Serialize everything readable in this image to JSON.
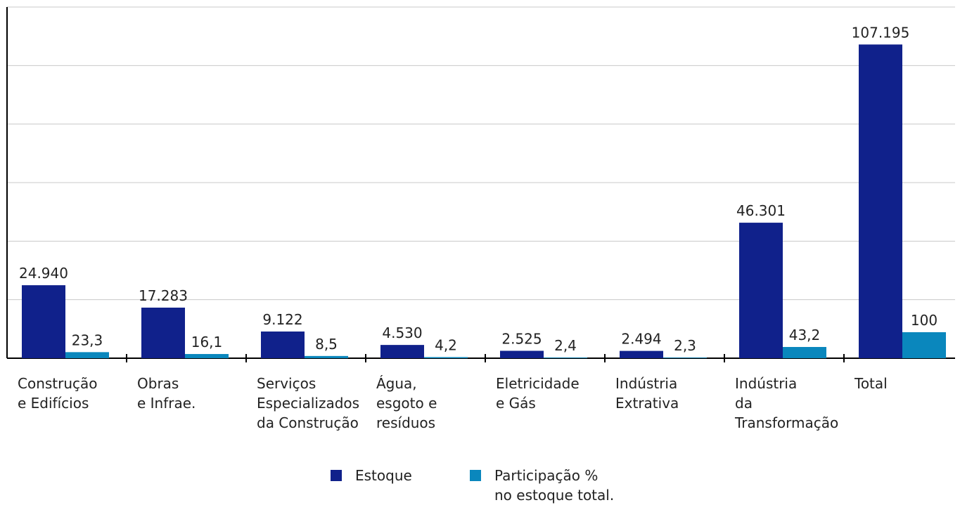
{
  "chart_data": {
    "type": "bar",
    "categories": [
      "Construção\ne Edifícios",
      "Obras\ne Infrae.",
      "Serviços\nEspecializados\nda Construção",
      "Água,\nesgoto e\nresíduos",
      "Eletricidade\ne Gás",
      "Indústria\nExtrativa",
      "Indústria\nda\nTransformação",
      "Total"
    ],
    "series": [
      {
        "name": "Estoque",
        "color": "#10218b",
        "values": [
          24940,
          17283,
          9122,
          4530,
          2525,
          2494,
          46301,
          107195
        ],
        "value_labels": [
          "24.940",
          "17.283",
          "9.122",
          "4.530",
          "2.525",
          "2.494",
          "46.301",
          "107.195"
        ]
      },
      {
        "name": "Participação %\nno estoque total.",
        "color": "#0a87bd",
        "axis": "y2",
        "values": [
          23.3,
          16.1,
          8.5,
          4.2,
          2.4,
          2.3,
          43.2,
          100
        ],
        "value_labels": [
          "23,3",
          "16,1",
          "8,5",
          "4,2",
          "2,4",
          "2,3",
          "43,2",
          "100"
        ]
      }
    ],
    "ylim": [
      0,
      120000
    ],
    "yticks": [
      0,
      20000,
      40000,
      60000,
      80000,
      100000,
      120000
    ],
    "y2lim": [
      0,
      1350
    ],
    "grid": true
  }
}
